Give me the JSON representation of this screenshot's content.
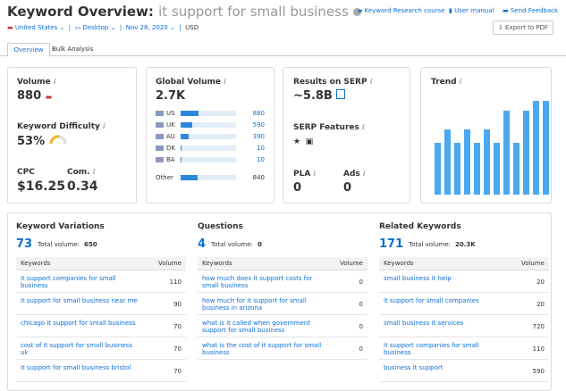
{
  "header": {
    "title": "Keyword Overview:",
    "keyword": "it support for small business",
    "links": [
      "Keyword Research course",
      "User manual",
      "Send Feedback"
    ],
    "filters": [
      "United States",
      "Desktop",
      "Nov 28, 2020",
      "USD"
    ],
    "export": "Export to PDF"
  },
  "tabs": [
    "Overview",
    "Bulk Analysis"
  ],
  "volume": {
    "label": "Volume",
    "value": "880"
  },
  "difficulty": {
    "label": "Keyword Difficulty",
    "value": "53%"
  },
  "cpc": {
    "label": "CPC",
    "value": "$16.25"
  },
  "competition": {
    "label": "Com.",
    "value": "0.34"
  },
  "global_volume": {
    "label": "Global Volume",
    "value": "2.7K",
    "rows": [
      {
        "country": "US",
        "volume": 880
      },
      {
        "country": "UK",
        "volume": 590
      },
      {
        "country": "AU",
        "volume": 390
      },
      {
        "country": "DK",
        "volume": 10
      },
      {
        "country": "BA",
        "volume": 10
      },
      {
        "country": "Other",
        "volume": 840
      }
    ]
  },
  "serp": {
    "label": "Results on SERP",
    "value": "~5.8B",
    "features_label": "SERP Features",
    "pla_label": "PLA",
    "pla": "0",
    "ads_label": "Ads",
    "ads": "0"
  },
  "trend": {
    "label": "Trend",
    "values": [
      0.55,
      0.7,
      0.55,
      0.7,
      0.55,
      0.7,
      0.55,
      0.9,
      0.55,
      0.9,
      1,
      1
    ]
  },
  "keyword_variations": {
    "title": "Keyword Variations",
    "count": "73",
    "total_label": "Total volume:",
    "total": "650",
    "columns": [
      "Keywords",
      "Volume"
    ],
    "rows": [
      [
        "it support companies for small business",
        110
      ],
      [
        "it support for small business near me",
        90
      ],
      [
        "chicago it support for small business",
        70
      ],
      [
        "cost of it support for small business uk",
        70
      ],
      [
        "it support for small business bristol",
        70
      ]
    ]
  },
  "questions": {
    "title": "Questions",
    "count": "4",
    "total_label": "Total volume:",
    "total": "0",
    "columns": [
      "Keywords",
      "Volume"
    ],
    "rows": [
      [
        "how much does it support costs for small business",
        0
      ],
      [
        "how much for it support for small business in arizona",
        0
      ],
      [
        "what is it called when government support for small business",
        0
      ],
      [
        "what is the cost of it support for small business",
        0
      ]
    ]
  },
  "related_keywords": {
    "title": "Related Keywords",
    "count": "171",
    "total_label": "Total volume:",
    "total": "20.3K",
    "columns": [
      "Keywords",
      "Volume"
    ],
    "rows": [
      [
        "small business it help",
        20
      ],
      [
        "it support for small companies",
        20
      ],
      [
        "small business it services",
        720
      ],
      [
        "it support companies for small business",
        110
      ],
      [
        "business it support",
        590
      ]
    ]
  }
}
